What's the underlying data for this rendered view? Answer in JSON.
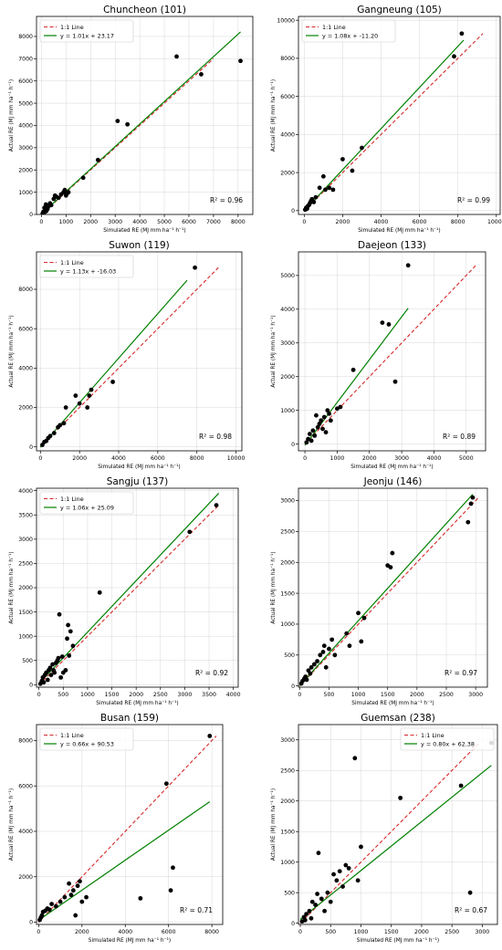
{
  "figure": {
    "colors": {
      "points": "#000000",
      "one_to_one": "#d62728",
      "regression": "#008000",
      "axes": "#000000",
      "grid": "#b0b0b0"
    }
  },
  "chart_data": [
    {
      "type": "scatter",
      "title": "Chuncheon (101)",
      "xlabel": "Simulated RE (MJ mm ha⁻¹ h⁻¹)",
      "ylabel": "Actual RE (MJ mm ha⁻¹ h⁻¹)",
      "xlim": [
        -200,
        8600
      ],
      "ylim": [
        0,
        8900
      ],
      "xticks": [
        0,
        1000,
        2000,
        3000,
        4000,
        5000,
        6000,
        7000,
        8000
      ],
      "yticks": [
        0,
        1000,
        2000,
        3000,
        4000,
        5000,
        6000,
        7000,
        8000
      ],
      "grid": true,
      "legend": {
        "position": "top-left",
        "entries": [
          "1:1 Line",
          "y = 1.01x + 23.17"
        ]
      },
      "r2_label": "R² = 0.96",
      "one_to_one": [
        0,
        7000
      ],
      "regression": {
        "slope": 1.01,
        "intercept": 23.17,
        "x_range": [
          0,
          8100
        ]
      },
      "points": [
        [
          50,
          50
        ],
        [
          80,
          120
        ],
        [
          100,
          60
        ],
        [
          120,
          300
        ],
        [
          150,
          200
        ],
        [
          180,
          450
        ],
        [
          200,
          150
        ],
        [
          220,
          350
        ],
        [
          250,
          250
        ],
        [
          300,
          380
        ],
        [
          350,
          500
        ],
        [
          400,
          420
        ],
        [
          500,
          700
        ],
        [
          550,
          850
        ],
        [
          600,
          800
        ],
        [
          700,
          750
        ],
        [
          800,
          900
        ],
        [
          900,
          1000
        ],
        [
          950,
          1100
        ],
        [
          1000,
          850
        ],
        [
          1050,
          950
        ],
        [
          1100,
          1000
        ],
        [
          1700,
          1650
        ],
        [
          2300,
          2450
        ],
        [
          3100,
          4200
        ],
        [
          3500,
          4050
        ],
        [
          5500,
          7100
        ],
        [
          6500,
          6300
        ],
        [
          8100,
          6900
        ]
      ]
    },
    {
      "type": "scatter",
      "title": "Gangneung (105)",
      "xlabel": "Simulated RE (MJ mm ha⁻¹ h⁻¹)",
      "ylabel": "Actual RE (MJ mm ha⁻¹ h⁻¹)",
      "xlim": [
        -300,
        10200
      ],
      "ylim": [
        -200,
        10200
      ],
      "xticks": [
        0,
        2000,
        4000,
        6000,
        8000,
        10000
      ],
      "yticks": [
        0,
        2000,
        4000,
        6000,
        8000,
        10000
      ],
      "grid": true,
      "legend": {
        "position": "top-left",
        "entries": [
          "1:1 Line",
          "y = 1.08x + -11.20"
        ]
      },
      "r2_label": "R² = 0.99",
      "one_to_one": [
        0,
        9300
      ],
      "regression": {
        "slope": 1.08,
        "intercept": -11.2,
        "x_range": [
          0,
          8300
        ]
      },
      "points": [
        [
          50,
          50
        ],
        [
          100,
          150
        ],
        [
          150,
          100
        ],
        [
          200,
          250
        ],
        [
          250,
          300
        ],
        [
          300,
          400
        ],
        [
          350,
          500
        ],
        [
          400,
          600
        ],
        [
          500,
          450
        ],
        [
          600,
          700
        ],
        [
          800,
          1200
        ],
        [
          1000,
          1800
        ],
        [
          1100,
          1100
        ],
        [
          1300,
          1200
        ],
        [
          1500,
          1100
        ],
        [
          2000,
          2700
        ],
        [
          2500,
          2100
        ],
        [
          3000,
          3300
        ],
        [
          7800,
          8100
        ],
        [
          8200,
          9300
        ]
      ]
    },
    {
      "type": "scatter",
      "title": "Suwon (119)",
      "xlabel": "Simulated RE (MJ mm ha⁻¹ h⁻¹)",
      "ylabel": "Actual RE (MJ mm ha⁻¹ h⁻¹)",
      "xlim": [
        -200,
        10300
      ],
      "ylim": [
        -200,
        9900
      ],
      "xticks": [
        0,
        2000,
        4000,
        6000,
        8000,
        10000
      ],
      "yticks": [
        0,
        2000,
        4000,
        6000,
        8000
      ],
      "grid": true,
      "legend": {
        "position": "top-left",
        "entries": [
          "1:1 Line",
          "y = 1.13x + -16.03"
        ]
      },
      "r2_label": "R² = 0.98",
      "one_to_one": [
        0,
        9100
      ],
      "regression": {
        "slope": 1.13,
        "intercept": -16.03,
        "x_range": [
          0,
          7500
        ]
      },
      "points": [
        [
          100,
          100
        ],
        [
          200,
          250
        ],
        [
          300,
          300
        ],
        [
          400,
          450
        ],
        [
          500,
          550
        ],
        [
          700,
          700
        ],
        [
          900,
          1000
        ],
        [
          1000,
          1100
        ],
        [
          1200,
          1200
        ],
        [
          1300,
          2000
        ],
        [
          1800,
          2600
        ],
        [
          2000,
          2200
        ],
        [
          2400,
          2000
        ],
        [
          2500,
          2600
        ],
        [
          2600,
          2900
        ],
        [
          3700,
          3300
        ],
        [
          7900,
          9100
        ]
      ]
    },
    {
      "type": "scatter",
      "title": "Daejeon (133)",
      "xlabel": "Simulated RE (MJ mm ha⁻¹ h⁻¹)",
      "ylabel": "Actual RE (MJ mm ha⁻¹ h⁻¹)",
      "xlim": [
        -200,
        5600
      ],
      "ylim": [
        -200,
        5700
      ],
      "xticks": [
        0,
        1000,
        2000,
        3000,
        4000,
        5000
      ],
      "yticks": [
        0,
        1000,
        2000,
        3000,
        4000,
        5000
      ],
      "grid": true,
      "legend": {
        "position": "none",
        "entries": []
      },
      "r2_label": "R² = 0.89",
      "one_to_one": [
        0,
        5300
      ],
      "regression": {
        "slope": 1.27,
        "intercept": -35.64,
        "x_range": [
          0,
          3200
        ]
      },
      "points": [
        [
          50,
          50
        ],
        [
          100,
          150
        ],
        [
          150,
          300
        ],
        [
          200,
          100
        ],
        [
          250,
          400
        ],
        [
          300,
          250
        ],
        [
          350,
          850
        ],
        [
          400,
          500
        ],
        [
          450,
          600
        ],
        [
          500,
          700
        ],
        [
          550,
          450
        ],
        [
          600,
          800
        ],
        [
          650,
          350
        ],
        [
          700,
          1000
        ],
        [
          750,
          900
        ],
        [
          800,
          700
        ],
        [
          1000,
          1050
        ],
        [
          1100,
          1100
        ],
        [
          1500,
          2200
        ],
        [
          2400,
          3600
        ],
        [
          2600,
          3550
        ],
        [
          2800,
          1850
        ],
        [
          3200,
          5300
        ]
      ]
    },
    {
      "type": "scatter",
      "title": "Sangju (137)",
      "xlabel": "Simulated RE (MJ mm ha⁻¹ h⁻¹)",
      "ylabel": "Actual RE (MJ mm ha⁻¹ h⁻¹)",
      "xlim": [
        -50,
        4100
      ],
      "ylim": [
        -50,
        4050
      ],
      "xticks": [
        0,
        500,
        1000,
        1500,
        2000,
        2500,
        3000,
        3500,
        4000
      ],
      "yticks": [
        0,
        500,
        1000,
        1500,
        2000,
        2500,
        3000,
        3500,
        4000
      ],
      "grid": true,
      "legend": {
        "position": "top-left",
        "entries": [
          "1:1 Line",
          "y = 1.06x + 25.09"
        ]
      },
      "r2_label": "R² = 0.92",
      "one_to_one": [
        0,
        3700
      ],
      "regression": {
        "slope": 1.06,
        "intercept": 25.09,
        "x_range": [
          0,
          3700
        ]
      },
      "points": [
        [
          30,
          20
        ],
        [
          60,
          80
        ],
        [
          80,
          150
        ],
        [
          100,
          50
        ],
        [
          120,
          200
        ],
        [
          150,
          250
        ],
        [
          180,
          100
        ],
        [
          200,
          300
        ],
        [
          230,
          350
        ],
        [
          250,
          200
        ],
        [
          280,
          420
        ],
        [
          300,
          300
        ],
        [
          320,
          250
        ],
        [
          350,
          450
        ],
        [
          380,
          500
        ],
        [
          400,
          550
        ],
        [
          420,
          1450
        ],
        [
          450,
          150
        ],
        [
          480,
          580
        ],
        [
          500,
          250
        ],
        [
          550,
          300
        ],
        [
          580,
          950
        ],
        [
          600,
          1230
        ],
        [
          620,
          600
        ],
        [
          650,
          1100
        ],
        [
          700,
          800
        ],
        [
          1250,
          1900
        ],
        [
          3100,
          3150
        ],
        [
          3650,
          3700
        ]
      ]
    },
    {
      "type": "scatter",
      "title": "Jeonju (146)",
      "xlabel": "Simulated RE (MJ mm ha⁻¹ h⁻¹)",
      "ylabel": "Actual RE (MJ mm ha⁻¹ h⁻¹)",
      "xlim": [
        -20,
        3200
      ],
      "ylim": [
        -20,
        3200
      ],
      "xticks": [
        0,
        500,
        1000,
        1500,
        2000,
        2500,
        3000
      ],
      "yticks": [
        0,
        500,
        1000,
        1500,
        2000,
        2500,
        3000
      ],
      "grid": true,
      "legend": {
        "position": "none",
        "entries": []
      },
      "r2_label": "R² = 0.97",
      "one_to_one": [
        0,
        3050
      ],
      "regression": {
        "slope": 1.05,
        "intercept": 4.79,
        "x_range": [
          0,
          2950
        ]
      },
      "points": [
        [
          30,
          40
        ],
        [
          50,
          80
        ],
        [
          80,
          120
        ],
        [
          100,
          150
        ],
        [
          120,
          100
        ],
        [
          150,
          250
        ],
        [
          180,
          200
        ],
        [
          200,
          300
        ],
        [
          250,
          350
        ],
        [
          300,
          400
        ],
        [
          350,
          500
        ],
        [
          400,
          550
        ],
        [
          420,
          650
        ],
        [
          450,
          300
        ],
        [
          500,
          600
        ],
        [
          550,
          750
        ],
        [
          600,
          500
        ],
        [
          800,
          850
        ],
        [
          850,
          650
        ],
        [
          1000,
          1180
        ],
        [
          1050,
          720
        ],
        [
          1100,
          1100
        ],
        [
          1500,
          1950
        ],
        [
          1550,
          1920
        ],
        [
          1580,
          2150
        ],
        [
          2870,
          2650
        ],
        [
          2920,
          2950
        ],
        [
          2950,
          3050
        ]
      ]
    },
    {
      "type": "scatter",
      "title": "Busan (159)",
      "xlabel": "Simulated RE (MJ mm ha⁻¹ h⁻¹)",
      "ylabel": "Actual RE (MJ mm ha⁻¹ h⁻¹)",
      "xlim": [
        -100,
        8500
      ],
      "ylim": [
        -100,
        8700
      ],
      "xticks": [
        0,
        2000,
        4000,
        6000,
        8000
      ],
      "yticks": [
        0,
        2000,
        4000,
        6000,
        8000
      ],
      "grid": true,
      "legend": {
        "position": "top-left",
        "entries": [
          "1:1 Line",
          "y = 0.66x + 90.53"
        ]
      },
      "r2_label": "R² = 0.71",
      "one_to_one": [
        0,
        8200
      ],
      "regression": {
        "slope": 0.66,
        "intercept": 90.53,
        "x_range": [
          0,
          7900
        ]
      },
      "points": [
        [
          50,
          100
        ],
        [
          100,
          200
        ],
        [
          150,
          300
        ],
        [
          200,
          450
        ],
        [
          300,
          500
        ],
        [
          400,
          600
        ],
        [
          500,
          550
        ],
        [
          600,
          800
        ],
        [
          800,
          700
        ],
        [
          1000,
          900
        ],
        [
          1200,
          1100
        ],
        [
          1400,
          1700
        ],
        [
          1500,
          1200
        ],
        [
          1600,
          1400
        ],
        [
          1700,
          300
        ],
        [
          1800,
          1600
        ],
        [
          1900,
          1800
        ],
        [
          2000,
          900
        ],
        [
          2200,
          1100
        ],
        [
          4700,
          1050
        ],
        [
          5900,
          6100
        ],
        [
          6100,
          1400
        ],
        [
          6200,
          2400
        ],
        [
          7900,
          8200
        ]
      ]
    },
    {
      "type": "scatter",
      "title": "Guemsan (238)",
      "xlabel": "Simulated RE (MJ mm ha⁻¹ h⁻¹)",
      "ylabel": "Actual RE (MJ mm ha⁻¹ h⁻¹)",
      "xlim": [
        -30,
        3250
      ],
      "ylim": [
        -20,
        3250
      ],
      "xticks": [
        0,
        500,
        1000,
        1500,
        2000,
        2500,
        3000
      ],
      "yticks": [
        0,
        500,
        1000,
        1500,
        2000,
        2500,
        3000
      ],
      "grid": true,
      "legend": {
        "position": "top-right",
        "entries": [
          "1:1 Line",
          "y = 0.80x + 62.38"
        ]
      },
      "r2_label": "R² = 0.67",
      "one_to_one": [
        0,
        2950
      ],
      "regression": {
        "slope": 0.8,
        "intercept": 62.38,
        "x_range": [
          0,
          3150
        ]
      },
      "points": [
        [
          30,
          30
        ],
        [
          60,
          100
        ],
        [
          80,
          50
        ],
        [
          100,
          150
        ],
        [
          150,
          200
        ],
        [
          180,
          80
        ],
        [
          200,
          350
        ],
        [
          250,
          300
        ],
        [
          280,
          480
        ],
        [
          300,
          1150
        ],
        [
          350,
          400
        ],
        [
          400,
          200
        ],
        [
          450,
          500
        ],
        [
          500,
          350
        ],
        [
          550,
          800
        ],
        [
          600,
          700
        ],
        [
          650,
          850
        ],
        [
          700,
          600
        ],
        [
          750,
          950
        ],
        [
          800,
          900
        ],
        [
          900,
          2700
        ],
        [
          950,
          700
        ],
        [
          1000,
          1250
        ],
        [
          1650,
          2050
        ],
        [
          2650,
          2250
        ],
        [
          2800,
          500
        ],
        [
          3150,
          2950
        ]
      ]
    }
  ]
}
